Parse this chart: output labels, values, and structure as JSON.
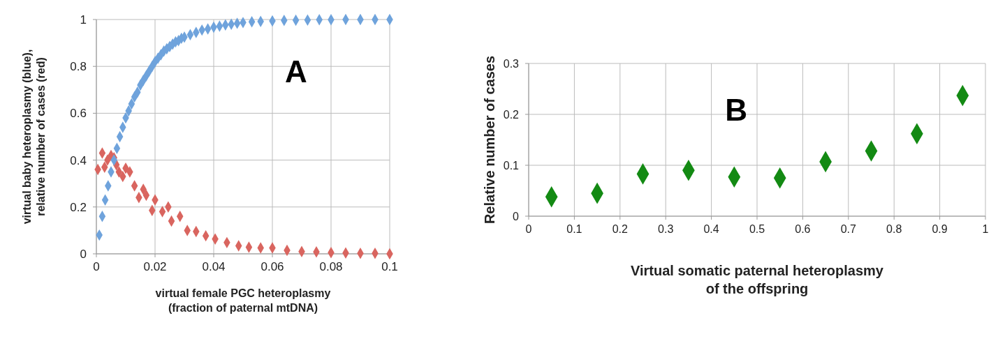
{
  "chart_data": [
    {
      "type": "scatter",
      "xlabel": "virtual female PGC heteroplasmy\n(fraction of paternal mtDNA)",
      "ylabel": "virtual baby heteroplasmy (blue),\nrelative number of cases (red)",
      "annotations": [
        "A"
      ],
      "marker": "diamond",
      "grid": true,
      "xlim": [
        0,
        0.1
      ],
      "xticks": [
        0,
        0.02,
        0.04,
        0.06,
        0.08,
        0.1
      ],
      "ylim": [
        0,
        1
      ],
      "yticks": [
        0,
        0.2,
        0.4,
        0.6,
        0.8,
        1
      ],
      "series": [
        {
          "color": "#6fa3dc",
          "x": [
            0.001,
            0.002,
            0.003,
            0.004,
            0.005,
            0.006,
            0.007,
            0.008,
            0.009,
            0.01,
            0.011,
            0.012,
            0.013,
            0.014,
            0.015,
            0.016,
            0.017,
            0.018,
            0.019,
            0.02,
            0.021,
            0.022,
            0.023,
            0.024,
            0.025,
            0.026,
            0.027,
            0.028,
            0.029,
            0.03,
            0.032,
            0.034,
            0.036,
            0.038,
            0.04,
            0.042,
            0.044,
            0.046,
            0.048,
            0.05,
            0.053,
            0.056,
            0.06,
            0.064,
            0.068,
            0.072,
            0.076,
            0.08,
            0.085,
            0.09,
            0.095,
            0.1
          ],
          "values": [
            0.08,
            0.16,
            0.23,
            0.29,
            0.35,
            0.4,
            0.45,
            0.5,
            0.54,
            0.58,
            0.61,
            0.64,
            0.67,
            0.69,
            0.72,
            0.74,
            0.76,
            0.78,
            0.8,
            0.82,
            0.835,
            0.85,
            0.865,
            0.875,
            0.885,
            0.895,
            0.905,
            0.91,
            0.92,
            0.925,
            0.935,
            0.945,
            0.955,
            0.96,
            0.967,
            0.972,
            0.977,
            0.98,
            0.984,
            0.987,
            0.99,
            0.992,
            0.994,
            0.996,
            0.997,
            0.998,
            0.999,
            0.999,
            1,
            1,
            1,
            1
          ]
        },
        {
          "color": "#d9655f",
          "x": [
            0.0005,
            0.002,
            0.0028,
            0.0038,
            0.005,
            0.006,
            0.0068,
            0.0077,
            0.009,
            0.01,
            0.0114,
            0.013,
            0.0145,
            0.016,
            0.017,
            0.019,
            0.02,
            0.0225,
            0.0245,
            0.0256,
            0.0285,
            0.031,
            0.034,
            0.0373,
            0.0405,
            0.0445,
            0.0485,
            0.052,
            0.056,
            0.06,
            0.065,
            0.07,
            0.075,
            0.08,
            0.085,
            0.09,
            0.095,
            0.1
          ],
          "values": [
            0.36,
            0.43,
            0.37,
            0.4,
            0.42,
            0.41,
            0.38,
            0.35,
            0.33,
            0.365,
            0.35,
            0.29,
            0.24,
            0.275,
            0.25,
            0.185,
            0.23,
            0.18,
            0.2,
            0.14,
            0.16,
            0.1,
            0.095,
            0.077,
            0.063,
            0.048,
            0.034,
            0.028,
            0.025,
            0.025,
            0.015,
            0.01,
            0.008,
            0.005,
            0.004,
            0.002,
            0.002,
            0
          ]
        }
      ]
    },
    {
      "type": "scatter",
      "xlabel": "Virtual somatic paternal heteroplasmy\nof the offspring",
      "ylabel": "Relative number of cases",
      "annotations": [
        "B"
      ],
      "marker": "diamond",
      "grid": true,
      "xlim": [
        0,
        1
      ],
      "xticks": [
        0,
        0.1,
        0.2,
        0.3,
        0.4,
        0.5,
        0.6,
        0.7,
        0.8,
        0.9,
        1
      ],
      "ylim": [
        0,
        0.3
      ],
      "yticks": [
        0,
        0.1,
        0.2,
        0.3
      ],
      "series": [
        {
          "color": "#138a13",
          "x": [
            0.05,
            0.15,
            0.25,
            0.35,
            0.45,
            0.55,
            0.65,
            0.75,
            0.85,
            0.95
          ],
          "values": [
            0.038,
            0.045,
            0.083,
            0.09,
            0.077,
            0.075,
            0.107,
            0.128,
            0.162,
            0.237
          ]
        }
      ]
    }
  ]
}
